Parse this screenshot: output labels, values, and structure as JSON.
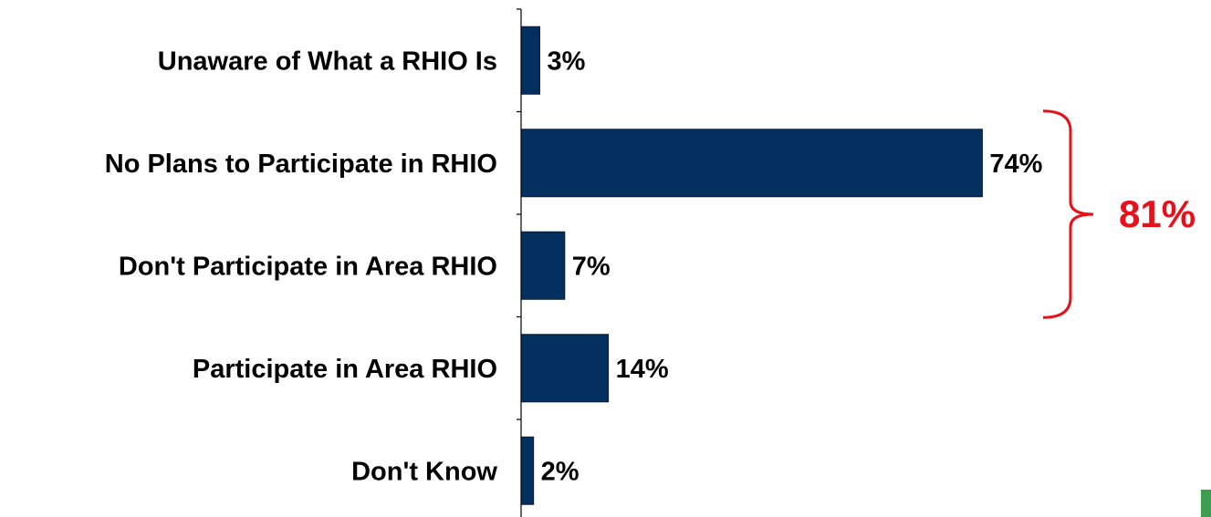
{
  "chart_data": {
    "type": "bar",
    "orientation": "horizontal",
    "categories": [
      "Unaware of What a RHIO Is",
      "No Plans to Participate in RHIO",
      "Don't Participate in Area RHIO",
      "Participate in Area RHIO",
      "Don't Know"
    ],
    "values": [
      3,
      74,
      7,
      14,
      2
    ],
    "value_labels": [
      "3%",
      "74%",
      "7%",
      "14%",
      "2%"
    ],
    "xlim": [
      0,
      100
    ],
    "grid": false,
    "legend": "none",
    "bar_color": "#04305F",
    "annotation": {
      "text": "81%",
      "spans_categories": [
        "No Plans to Participate in RHIO",
        "Don't Participate in Area RHIO"
      ],
      "color": "#E8101A"
    }
  },
  "colors": {
    "corner_accent": "#3F9E4D"
  }
}
